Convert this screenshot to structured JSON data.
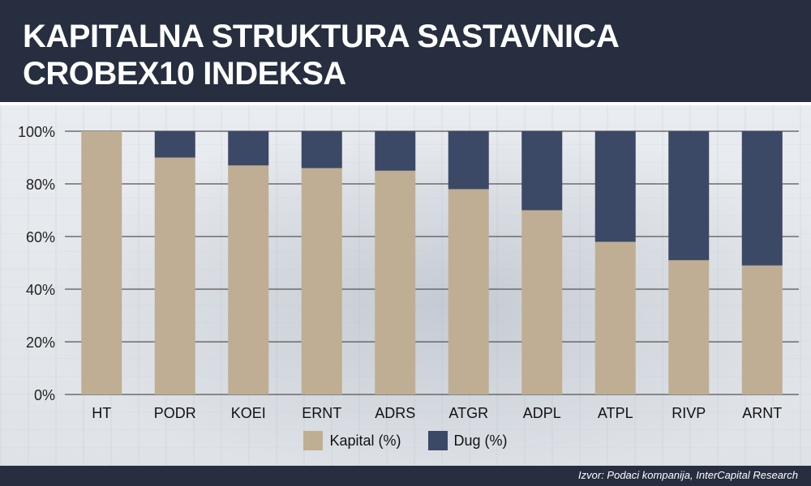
{
  "title": "KAPITALNA STRUKTURA SASTAVNICA CROBEX10 INDEKSA",
  "source": "Izvor: Podaci kompanija, InterCapital Research",
  "colors": {
    "header": "#262e40",
    "kapital": "#bfae93",
    "dug": "#3b4866",
    "grid": "#555555"
  },
  "chart_data": {
    "type": "bar",
    "stacked": true,
    "categories": [
      "HT",
      "PODR",
      "KOEI",
      "ERNT",
      "ADRS",
      "ATGR",
      "ADPL",
      "ATPL",
      "RIVP",
      "ARNT"
    ],
    "series": [
      {
        "name": "Kapital (%)",
        "values": [
          100,
          90,
          87,
          86,
          85,
          78,
          70,
          58,
          51,
          49
        ]
      },
      {
        "name": "Dug (%)",
        "values": [
          0,
          10,
          13,
          14,
          15,
          22,
          30,
          42,
          49,
          51
        ]
      }
    ],
    "ylim": [
      0,
      100
    ],
    "yticks": [
      "0%",
      "20%",
      "40%",
      "60%",
      "80%",
      "100%"
    ],
    "grid": true,
    "legend_position": "bottom"
  }
}
